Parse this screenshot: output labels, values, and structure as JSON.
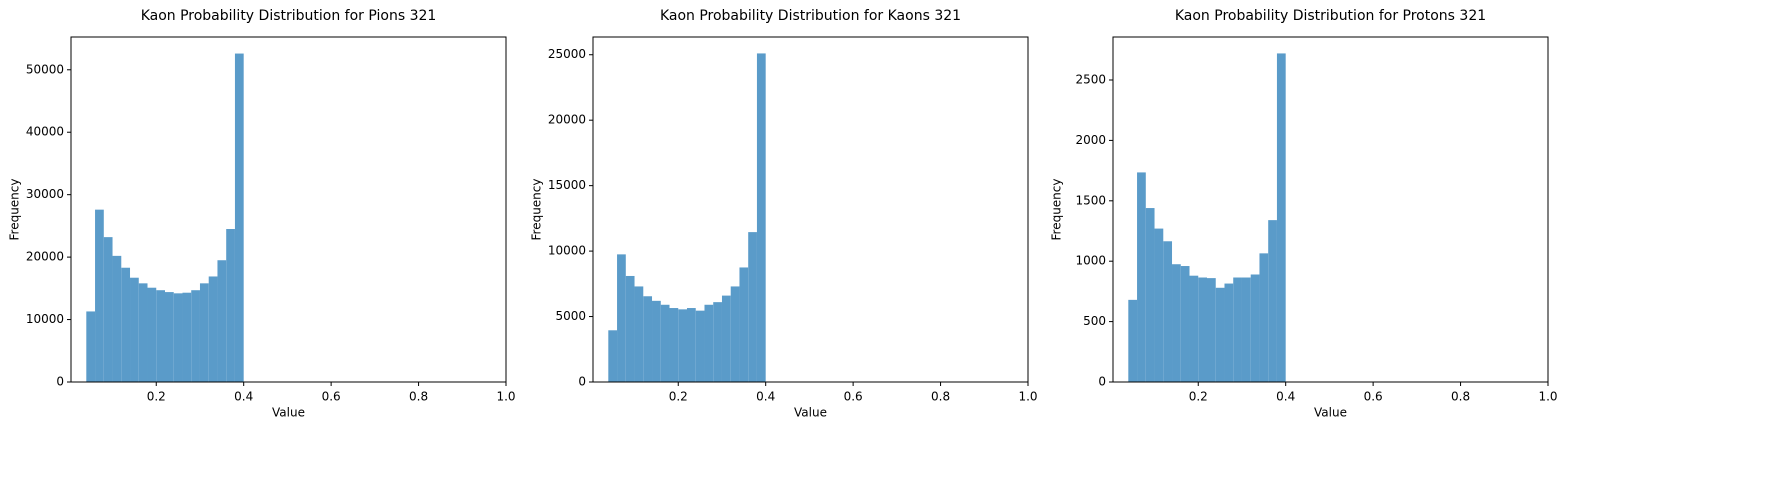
{
  "chart_data": [
    {
      "type": "histogram",
      "title": "Kaon Probability Distribution for Pions 321",
      "xlabel": "Value",
      "ylabel": "Frequency",
      "color": "#5a9bc9",
      "bins": [
        0.04,
        0.06,
        0.08,
        0.1,
        0.12,
        0.14,
        0.16,
        0.18,
        0.2,
        0.22,
        0.24,
        0.26,
        0.28,
        0.3,
        0.32,
        0.34,
        0.36,
        0.38,
        0.4
      ],
      "values": [
        11300,
        27600,
        23200,
        20200,
        18300,
        16700,
        15800,
        15100,
        14700,
        14400,
        14200,
        14300,
        14700,
        15800,
        16900,
        19500,
        24500,
        52600
      ],
      "xlim": [
        0.005,
        1.0
      ],
      "xticks": [
        0.2,
        0.4,
        0.6,
        0.8,
        {
          "value": 1.0,
          "label": "1.0"
        }
      ],
      "ylim": [
        0,
        55250
      ],
      "yticks": [
        0,
        10000,
        20000,
        30000,
        40000,
        50000
      ]
    },
    {
      "type": "histogram",
      "title": "Kaon Probability Distribution for Kaons 321",
      "xlabel": "Value",
      "ylabel": "Frequency",
      "color": "#5a9bc9",
      "bins": [
        0.04,
        0.06,
        0.08,
        0.1,
        0.12,
        0.14,
        0.16,
        0.18,
        0.2,
        0.22,
        0.24,
        0.26,
        0.28,
        0.3,
        0.32,
        0.34,
        0.36,
        0.38,
        0.4
      ],
      "values": [
        3950,
        9750,
        8100,
        7300,
        6550,
        6200,
        5900,
        5650,
        5550,
        5650,
        5450,
        5900,
        6100,
        6600,
        7300,
        8750,
        11450,
        25100
      ],
      "xlim": [
        0.005,
        1.0
      ],
      "xticks": [
        0.2,
        0.4,
        0.6,
        0.8,
        {
          "value": 1.0,
          "label": "1.0"
        }
      ],
      "ylim": [
        0,
        26355
      ],
      "yticks": [
        0,
        5000,
        10000,
        15000,
        20000,
        25000
      ]
    },
    {
      "type": "histogram",
      "title": "Kaon Probability Distribution for Protons 321",
      "xlabel": "Value",
      "ylabel": "Frequency",
      "color": "#5a9bc9",
      "bins": [
        0.04,
        0.06,
        0.08,
        0.1,
        0.12,
        0.14,
        0.16,
        0.18,
        0.2,
        0.22,
        0.24,
        0.26,
        0.28,
        0.3,
        0.32,
        0.34,
        0.36,
        0.38,
        0.4
      ],
      "values": [
        680,
        1735,
        1440,
        1270,
        1165,
        975,
        960,
        880,
        865,
        860,
        780,
        815,
        865,
        865,
        890,
        1065,
        1340,
        2720
      ],
      "xlim": [
        0.005,
        1.0
      ],
      "xticks": [
        0.2,
        0.4,
        0.6,
        0.8,
        {
          "value": 1.0,
          "label": "1.0"
        }
      ],
      "ylim": [
        0,
        2856
      ],
      "yticks": [
        0,
        500,
        1000,
        1500,
        2000,
        2500
      ]
    }
  ]
}
